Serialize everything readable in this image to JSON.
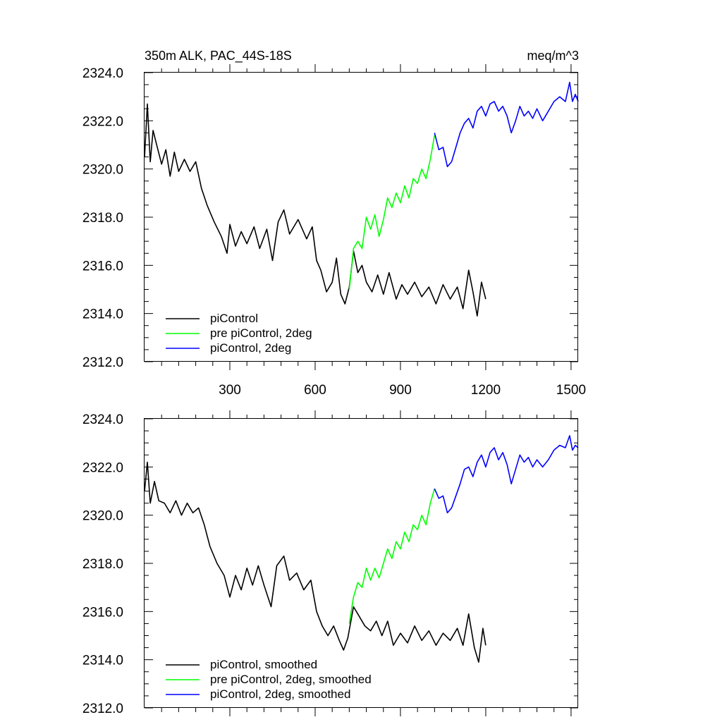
{
  "chart_data": [
    {
      "type": "line",
      "title": "350m ALK, PAC_44S-18S",
      "units": "meq/m^3",
      "xlabel": "",
      "ylabel": "",
      "xlim": [
        0,
        1525
      ],
      "ylim": [
        2312.0,
        2324.0
      ],
      "xticks": [
        300,
        600,
        900,
        1200,
        1500
      ],
      "yticks": [
        2312.0,
        2314.0,
        2316.0,
        2318.0,
        2320.0,
        2322.0,
        2324.0
      ],
      "ytick_labels": [
        "2312.0",
        "2314.0",
        "2316.0",
        "2318.0",
        "2320.0",
        "2322.0",
        "2324.0"
      ],
      "xtick_labels": [
        "300",
        "600",
        "900",
        "1200",
        "1500"
      ],
      "show_xtick_labels": true,
      "legend_position": "bottom-left",
      "series": [
        {
          "name": "piControl",
          "color": "#000000",
          "points": [
            [
              0,
              2320.5
            ],
            [
              10,
              2322.7
            ],
            [
              20,
              2320.3
            ],
            [
              30,
              2321.6
            ],
            [
              45,
              2320.9
            ],
            [
              60,
              2320.2
            ],
            [
              75,
              2320.8
            ],
            [
              90,
              2319.7
            ],
            [
              105,
              2320.7
            ],
            [
              120,
              2319.9
            ],
            [
              140,
              2320.4
            ],
            [
              160,
              2319.9
            ],
            [
              180,
              2320.3
            ],
            [
              200,
              2319.2
            ],
            [
              220,
              2318.5
            ],
            [
              245,
              2317.8
            ],
            [
              270,
              2317.2
            ],
            [
              290,
              2316.5
            ],
            [
              300,
              2317.7
            ],
            [
              320,
              2316.8
            ],
            [
              340,
              2317.4
            ],
            [
              360,
              2316.9
            ],
            [
              385,
              2317.6
            ],
            [
              405,
              2316.7
            ],
            [
              430,
              2317.5
            ],
            [
              450,
              2316.2
            ],
            [
              470,
              2317.8
            ],
            [
              490,
              2318.3
            ],
            [
              510,
              2317.3
            ],
            [
              540,
              2317.9
            ],
            [
              570,
              2317.1
            ],
            [
              590,
              2317.6
            ],
            [
              605,
              2316.2
            ],
            [
              620,
              2315.8
            ],
            [
              640,
              2314.9
            ],
            [
              660,
              2315.3
            ],
            [
              675,
              2316.3
            ],
            [
              690,
              2314.8
            ],
            [
              705,
              2314.4
            ],
            [
              720,
              2315.1
            ],
            [
              735,
              2316.6
            ],
            [
              750,
              2315.7
            ],
            [
              765,
              2316.0
            ],
            [
              780,
              2315.3
            ],
            [
              800,
              2314.9
            ],
            [
              820,
              2315.6
            ],
            [
              840,
              2314.8
            ],
            [
              860,
              2315.7
            ],
            [
              885,
              2314.6
            ],
            [
              905,
              2315.2
            ],
            [
              925,
              2314.8
            ],
            [
              950,
              2315.3
            ],
            [
              975,
              2314.7
            ],
            [
              1000,
              2315.1
            ],
            [
              1025,
              2314.4
            ],
            [
              1050,
              2315.2
            ],
            [
              1075,
              2314.6
            ],
            [
              1100,
              2315.1
            ],
            [
              1120,
              2314.2
            ],
            [
              1140,
              2315.8
            ],
            [
              1155,
              2314.9
            ],
            [
              1170,
              2313.9
            ],
            [
              1185,
              2315.3
            ],
            [
              1200,
              2314.6
            ]
          ]
        },
        {
          "name": "pre piControl, 2deg",
          "color": "#00ff00",
          "points": [
            [
              720,
              2315.0
            ],
            [
              735,
              2316.7
            ],
            [
              750,
              2317.0
            ],
            [
              765,
              2316.7
            ],
            [
              780,
              2318.0
            ],
            [
              795,
              2317.5
            ],
            [
              810,
              2318.1
            ],
            [
              825,
              2317.2
            ],
            [
              840,
              2317.9
            ],
            [
              855,
              2318.8
            ],
            [
              870,
              2318.4
            ],
            [
              885,
              2319.0
            ],
            [
              900,
              2318.6
            ],
            [
              915,
              2319.3
            ],
            [
              930,
              2318.8
            ],
            [
              945,
              2319.6
            ],
            [
              960,
              2319.4
            ],
            [
              975,
              2320.0
            ],
            [
              990,
              2319.6
            ],
            [
              1005,
              2320.4
            ],
            [
              1020,
              2321.4
            ]
          ]
        },
        {
          "name": "piControl, 2deg",
          "color": "#0000ff",
          "points": [
            [
              1020,
              2321.5
            ],
            [
              1035,
              2320.8
            ],
            [
              1050,
              2320.9
            ],
            [
              1065,
              2320.1
            ],
            [
              1080,
              2320.3
            ],
            [
              1095,
              2320.9
            ],
            [
              1110,
              2321.5
            ],
            [
              1125,
              2321.9
            ],
            [
              1140,
              2322.1
            ],
            [
              1155,
              2321.7
            ],
            [
              1170,
              2322.4
            ],
            [
              1185,
              2322.6
            ],
            [
              1200,
              2322.2
            ],
            [
              1215,
              2322.7
            ],
            [
              1230,
              2322.8
            ],
            [
              1245,
              2322.4
            ],
            [
              1260,
              2322.6
            ],
            [
              1275,
              2322.2
            ],
            [
              1290,
              2321.5
            ],
            [
              1305,
              2322.0
            ],
            [
              1320,
              2322.6
            ],
            [
              1335,
              2322.2
            ],
            [
              1350,
              2322.4
            ],
            [
              1365,
              2322.1
            ],
            [
              1380,
              2322.5
            ],
            [
              1400,
              2322.0
            ],
            [
              1420,
              2322.4
            ],
            [
              1440,
              2322.8
            ],
            [
              1460,
              2323.0
            ],
            [
              1480,
              2322.8
            ],
            [
              1495,
              2323.6
            ],
            [
              1505,
              2322.8
            ],
            [
              1515,
              2323.1
            ],
            [
              1525,
              2322.8
            ]
          ]
        }
      ]
    },
    {
      "type": "line",
      "title": "",
      "units": "",
      "xlabel": "",
      "ylabel": "",
      "xlim": [
        0,
        1525
      ],
      "ylim": [
        2312.0,
        2324.0
      ],
      "xticks": [
        300,
        600,
        900,
        1200,
        1500
      ],
      "yticks": [
        2312.0,
        2314.0,
        2316.0,
        2318.0,
        2320.0,
        2322.0,
        2324.0
      ],
      "ytick_labels": [
        "2312.0",
        "2314.0",
        "2316.0",
        "2318.0",
        "2320.0",
        "2322.0",
        "2324.0"
      ],
      "xtick_labels": [],
      "show_xtick_labels": false,
      "legend_position": "bottom-left",
      "series": [
        {
          "name": "piControl, smoothed",
          "color": "#000000",
          "points": [
            [
              0,
              2321.0
            ],
            [
              10,
              2322.2
            ],
            [
              20,
              2320.5
            ],
            [
              35,
              2321.4
            ],
            [
              50,
              2320.6
            ],
            [
              70,
              2320.5
            ],
            [
              90,
              2320.1
            ],
            [
              110,
              2320.6
            ],
            [
              130,
              2320.0
            ],
            [
              150,
              2320.5
            ],
            [
              170,
              2320.1
            ],
            [
              190,
              2320.3
            ],
            [
              210,
              2319.6
            ],
            [
              230,
              2318.7
            ],
            [
              255,
              2318.0
            ],
            [
              280,
              2317.5
            ],
            [
              300,
              2316.6
            ],
            [
              320,
              2317.5
            ],
            [
              340,
              2316.9
            ],
            [
              360,
              2317.8
            ],
            [
              380,
              2317.1
            ],
            [
              400,
              2317.9
            ],
            [
              420,
              2317.1
            ],
            [
              445,
              2316.2
            ],
            [
              465,
              2317.9
            ],
            [
              490,
              2318.3
            ],
            [
              510,
              2317.3
            ],
            [
              535,
              2317.6
            ],
            [
              560,
              2316.9
            ],
            [
              585,
              2317.3
            ],
            [
              605,
              2316.0
            ],
            [
              625,
              2315.4
            ],
            [
              645,
              2315.0
            ],
            [
              665,
              2315.4
            ],
            [
              685,
              2314.8
            ],
            [
              700,
              2314.4
            ],
            [
              715,
              2314.9
            ],
            [
              735,
              2316.2
            ],
            [
              755,
              2315.8
            ],
            [
              775,
              2315.4
            ],
            [
              795,
              2315.2
            ],
            [
              815,
              2315.6
            ],
            [
              835,
              2315.0
            ],
            [
              855,
              2315.6
            ],
            [
              875,
              2314.6
            ],
            [
              900,
              2315.1
            ],
            [
              925,
              2314.7
            ],
            [
              950,
              2315.4
            ],
            [
              975,
              2314.8
            ],
            [
              1000,
              2315.2
            ],
            [
              1025,
              2314.6
            ],
            [
              1050,
              2315.1
            ],
            [
              1075,
              2314.8
            ],
            [
              1100,
              2315.3
            ],
            [
              1120,
              2314.6
            ],
            [
              1140,
              2315.9
            ],
            [
              1160,
              2314.5
            ],
            [
              1175,
              2313.9
            ],
            [
              1190,
              2315.3
            ],
            [
              1200,
              2314.6
            ]
          ]
        },
        {
          "name": "pre piControl, 2deg, smoothed",
          "color": "#00ff00",
          "points": [
            [
              720,
              2315.5
            ],
            [
              735,
              2316.6
            ],
            [
              750,
              2317.2
            ],
            [
              765,
              2317.0
            ],
            [
              780,
              2317.8
            ],
            [
              795,
              2317.3
            ],
            [
              810,
              2317.8
            ],
            [
              825,
              2317.4
            ],
            [
              840,
              2318.0
            ],
            [
              855,
              2318.6
            ],
            [
              870,
              2318.2
            ],
            [
              885,
              2318.9
            ],
            [
              900,
              2318.6
            ],
            [
              915,
              2319.3
            ],
            [
              930,
              2318.9
            ],
            [
              945,
              2319.6
            ],
            [
              960,
              2319.4
            ],
            [
              975,
              2320.0
            ],
            [
              990,
              2319.6
            ],
            [
              1005,
              2320.5
            ],
            [
              1020,
              2321.1
            ]
          ]
        },
        {
          "name": "piControl, 2deg, smoothed",
          "color": "#0000ff",
          "points": [
            [
              1020,
              2321.1
            ],
            [
              1035,
              2320.7
            ],
            [
              1050,
              2320.8
            ],
            [
              1065,
              2320.1
            ],
            [
              1080,
              2320.3
            ],
            [
              1095,
              2320.8
            ],
            [
              1110,
              2321.3
            ],
            [
              1125,
              2321.9
            ],
            [
              1140,
              2322.0
            ],
            [
              1155,
              2321.6
            ],
            [
              1170,
              2322.2
            ],
            [
              1185,
              2322.5
            ],
            [
              1200,
              2322.0
            ],
            [
              1215,
              2322.6
            ],
            [
              1230,
              2322.8
            ],
            [
              1245,
              2322.3
            ],
            [
              1260,
              2322.6
            ],
            [
              1275,
              2322.1
            ],
            [
              1290,
              2321.3
            ],
            [
              1305,
              2321.9
            ],
            [
              1320,
              2322.5
            ],
            [
              1335,
              2322.2
            ],
            [
              1350,
              2322.4
            ],
            [
              1365,
              2322.0
            ],
            [
              1380,
              2322.3
            ],
            [
              1400,
              2322.0
            ],
            [
              1420,
              2322.3
            ],
            [
              1440,
              2322.7
            ],
            [
              1460,
              2322.9
            ],
            [
              1480,
              2322.8
            ],
            [
              1495,
              2323.3
            ],
            [
              1505,
              2322.7
            ],
            [
              1515,
              2322.9
            ],
            [
              1525,
              2322.8
            ]
          ]
        }
      ]
    }
  ]
}
